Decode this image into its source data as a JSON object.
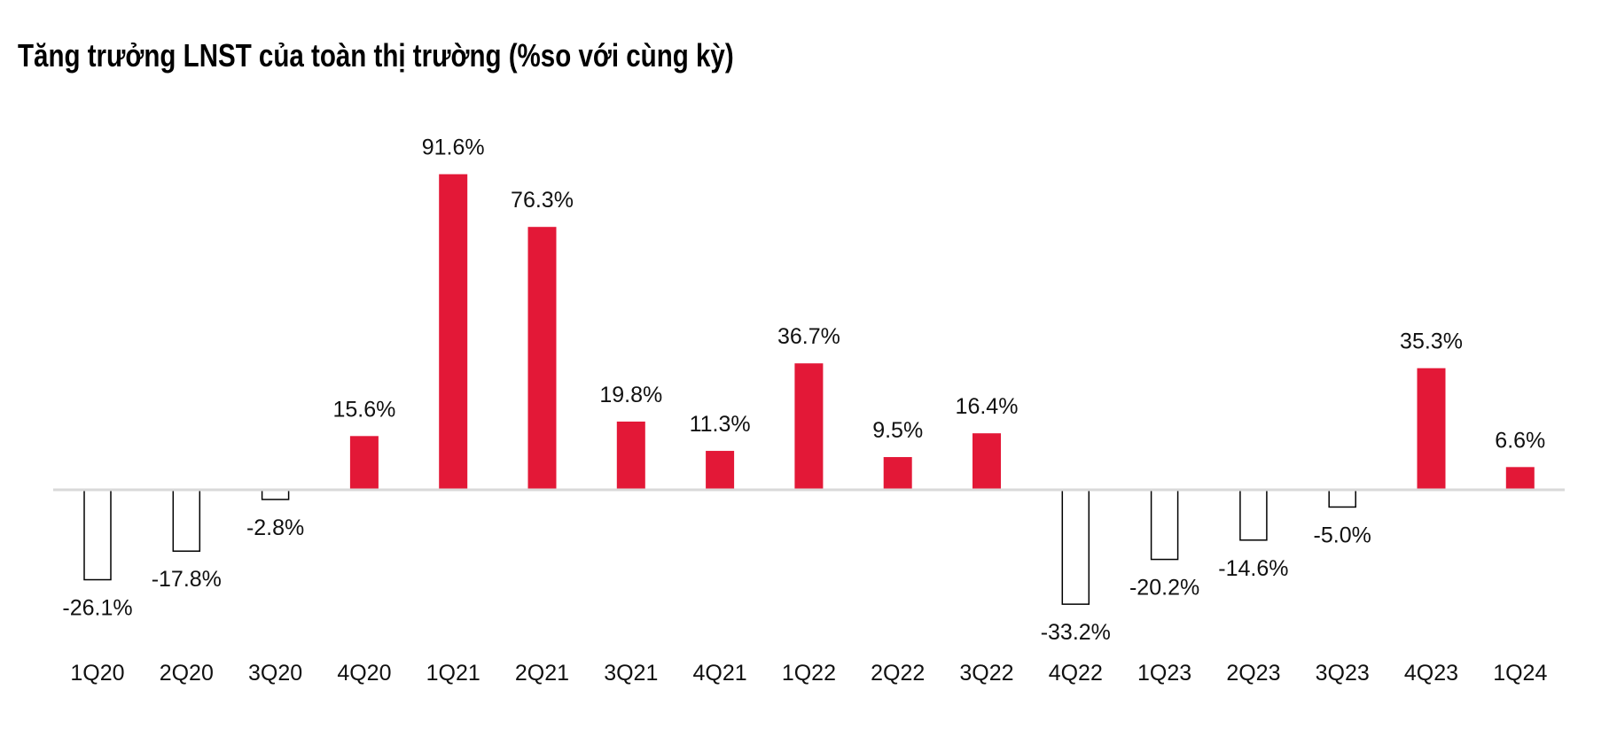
{
  "chart_data": {
    "type": "bar",
    "title": "Tăng trưởng LNST của toàn thị trường (%so với cùng kỳ)",
    "xlabel": "",
    "ylabel": "",
    "categories": [
      "1Q20",
      "2Q20",
      "3Q20",
      "4Q20",
      "1Q21",
      "2Q21",
      "3Q21",
      "4Q21",
      "1Q22",
      "2Q22",
      "3Q22",
      "4Q22",
      "1Q23",
      "2Q23",
      "3Q23",
      "4Q23",
      "1Q24"
    ],
    "values": [
      -26.1,
      -17.8,
      -2.8,
      15.6,
      91.6,
      76.3,
      19.8,
      11.3,
      36.7,
      9.5,
      16.4,
      -33.2,
      -20.2,
      -14.6,
      -5.0,
      35.3,
      6.6
    ],
    "data_labels": [
      "-26.1%",
      "-17.8%",
      "-2.8%",
      "15.6%",
      "91.6%",
      "76.3%",
      "19.8%",
      "11.3%",
      "36.7%",
      "9.5%",
      "16.4%",
      "-33.2%",
      "-20.2%",
      "-14.6%",
      "-5.0%",
      "35.3%",
      "6.6%"
    ],
    "ylim": [
      -40,
      100
    ],
    "grid": false,
    "legend": "none",
    "colors": {
      "positive": "#e31837",
      "negative_fill": "#ffffff",
      "negative_stroke": "#000000",
      "axis": "#d9d9d9"
    }
  }
}
